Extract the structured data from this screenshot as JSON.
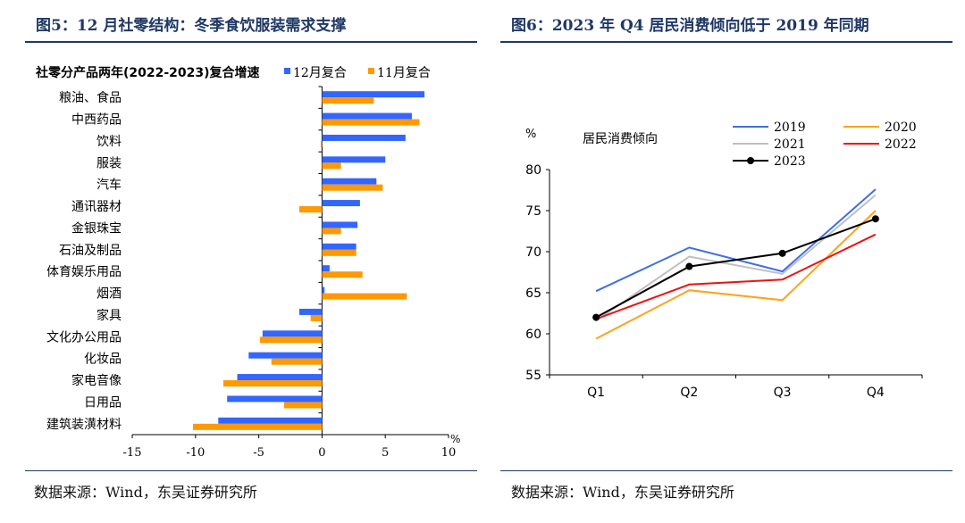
{
  "left": {
    "figure_title": "图5：12 月社零结构：冬季食饮服装需求支撑",
    "source": "数据来源：Wind，东吴证券研究所"
  },
  "right": {
    "figure_title": "图6：2023 年 Q4 居民消费倾向低于 2019 年同期",
    "source": "数据来源：Wind，东吴证券研究所"
  },
  "chart_data": [
    {
      "type": "bar",
      "orientation": "horizontal",
      "title": "社零分产品两年(2022-2023)复合增速",
      "xlabel": "%",
      "xlim": [
        -15,
        10
      ],
      "xticks": [
        -15,
        -10,
        -5,
        0,
        5,
        10
      ],
      "categories": [
        "粮油、食品",
        "中西药品",
        "饮料",
        "服装",
        "汽车",
        "通讯器材",
        "金银珠宝",
        "石油及制品",
        "体育娱乐用品",
        "烟酒",
        "家具",
        "文化办公用品",
        "化妆品",
        "家电音像",
        "日用品",
        "建筑装潢材料"
      ],
      "series": [
        {
          "name": "12月复合",
          "color": "#3366ff",
          "values": [
            8.1,
            7.1,
            6.6,
            5.0,
            4.3,
            3.0,
            2.8,
            2.7,
            0.6,
            0.2,
            -1.8,
            -4.7,
            -5.8,
            -6.7,
            -7.5,
            -8.2
          ]
        },
        {
          "name": "11月复合",
          "color": "#ff9900",
          "values": [
            4.1,
            7.7,
            -0.1,
            1.5,
            4.8,
            -1.8,
            1.5,
            2.7,
            3.2,
            6.7,
            -0.9,
            -4.9,
            -4.0,
            -7.8,
            -3.0,
            -10.2
          ]
        }
      ],
      "legend": "top"
    },
    {
      "type": "line",
      "title": "居民消费倾向",
      "ylabel": "%",
      "ylim": [
        55,
        80
      ],
      "yticks": [
        55,
        60,
        65,
        70,
        75,
        80
      ],
      "categories": [
        "Q1",
        "Q2",
        "Q3",
        "Q4"
      ],
      "series": [
        {
          "name": "2019",
          "color": "#3f6fe0",
          "values": [
            65.2,
            70.5,
            67.6,
            77.6
          ]
        },
        {
          "name": "2020",
          "color": "#ffa31a",
          "values": [
            59.4,
            65.3,
            64.1,
            75.0
          ]
        },
        {
          "name": "2021",
          "color": "#bfbfbf",
          "values": [
            61.6,
            69.4,
            67.3,
            76.9
          ]
        },
        {
          "name": "2022",
          "color": "#ee1111",
          "values": [
            61.8,
            66.0,
            66.6,
            72.1
          ]
        },
        {
          "name": "2023",
          "color": "#000000",
          "values": [
            62.0,
            68.2,
            69.8,
            74.0
          ],
          "markers": true
        }
      ],
      "legend": "top-right"
    }
  ]
}
